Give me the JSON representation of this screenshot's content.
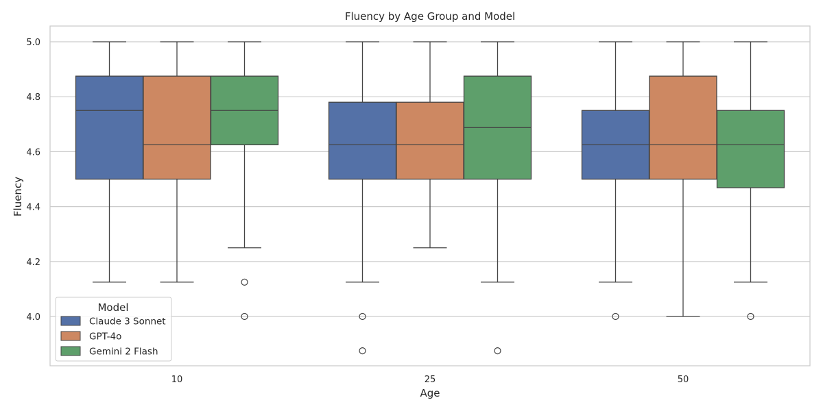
{
  "chart_data": {
    "type": "box",
    "title": "Fluency by Age Group and Model",
    "xlabel": "Age",
    "ylabel": "Fluency",
    "categories": [
      "10",
      "25",
      "50"
    ],
    "ylim": [
      3.83,
      5.06
    ],
    "yticks": [
      4.0,
      4.2,
      4.4,
      4.6,
      4.8,
      5.0
    ],
    "ytick_labels": [
      "4.0",
      "4.2",
      "4.4",
      "4.6",
      "4.8",
      "5.0"
    ],
    "grid": true,
    "legend": {
      "title": "Model",
      "position": "lower-left"
    },
    "series": [
      {
        "name": "Claude 3 Sonnet",
        "color": "#5471a7",
        "boxes": [
          {
            "whisker_low": 4.125,
            "q1": 4.5,
            "median": 4.75,
            "q3": 4.875,
            "whisker_high": 5.0,
            "outliers": []
          },
          {
            "whisker_low": 4.125,
            "q1": 4.5,
            "median": 4.625,
            "q3": 4.78,
            "whisker_high": 5.0,
            "outliers": [
              4.0,
              3.875
            ]
          },
          {
            "whisker_low": 4.125,
            "q1": 4.5,
            "median": 4.625,
            "q3": 4.75,
            "whisker_high": 5.0,
            "outliers": [
              4.0
            ]
          }
        ]
      },
      {
        "name": "GPT-4o",
        "color": "#cd8862",
        "boxes": [
          {
            "whisker_low": 4.125,
            "q1": 4.5,
            "median": 4.625,
            "q3": 4.875,
            "whisker_high": 5.0,
            "outliers": []
          },
          {
            "whisker_low": 4.25,
            "q1": 4.5,
            "median": 4.625,
            "q3": 4.78,
            "whisker_high": 5.0,
            "outliers": []
          },
          {
            "whisker_low": 4.0,
            "q1": 4.5,
            "median": 4.625,
            "q3": 4.875,
            "whisker_high": 5.0,
            "outliers": []
          }
        ]
      },
      {
        "name": "Gemini 2 Flash",
        "color": "#5e9f6b",
        "boxes": [
          {
            "whisker_low": 4.25,
            "q1": 4.625,
            "median": 4.75,
            "q3": 4.875,
            "whisker_high": 5.0,
            "outliers": [
              4.125,
              4.0
            ]
          },
          {
            "whisker_low": 4.125,
            "q1": 4.5,
            "median": 4.6875,
            "q3": 4.875,
            "whisker_high": 5.0,
            "outliers": [
              3.875
            ]
          },
          {
            "whisker_low": 4.125,
            "q1": 4.46875,
            "median": 4.625,
            "q3": 4.75,
            "whisker_high": 5.0,
            "outliers": [
              4.0
            ]
          }
        ]
      }
    ]
  }
}
